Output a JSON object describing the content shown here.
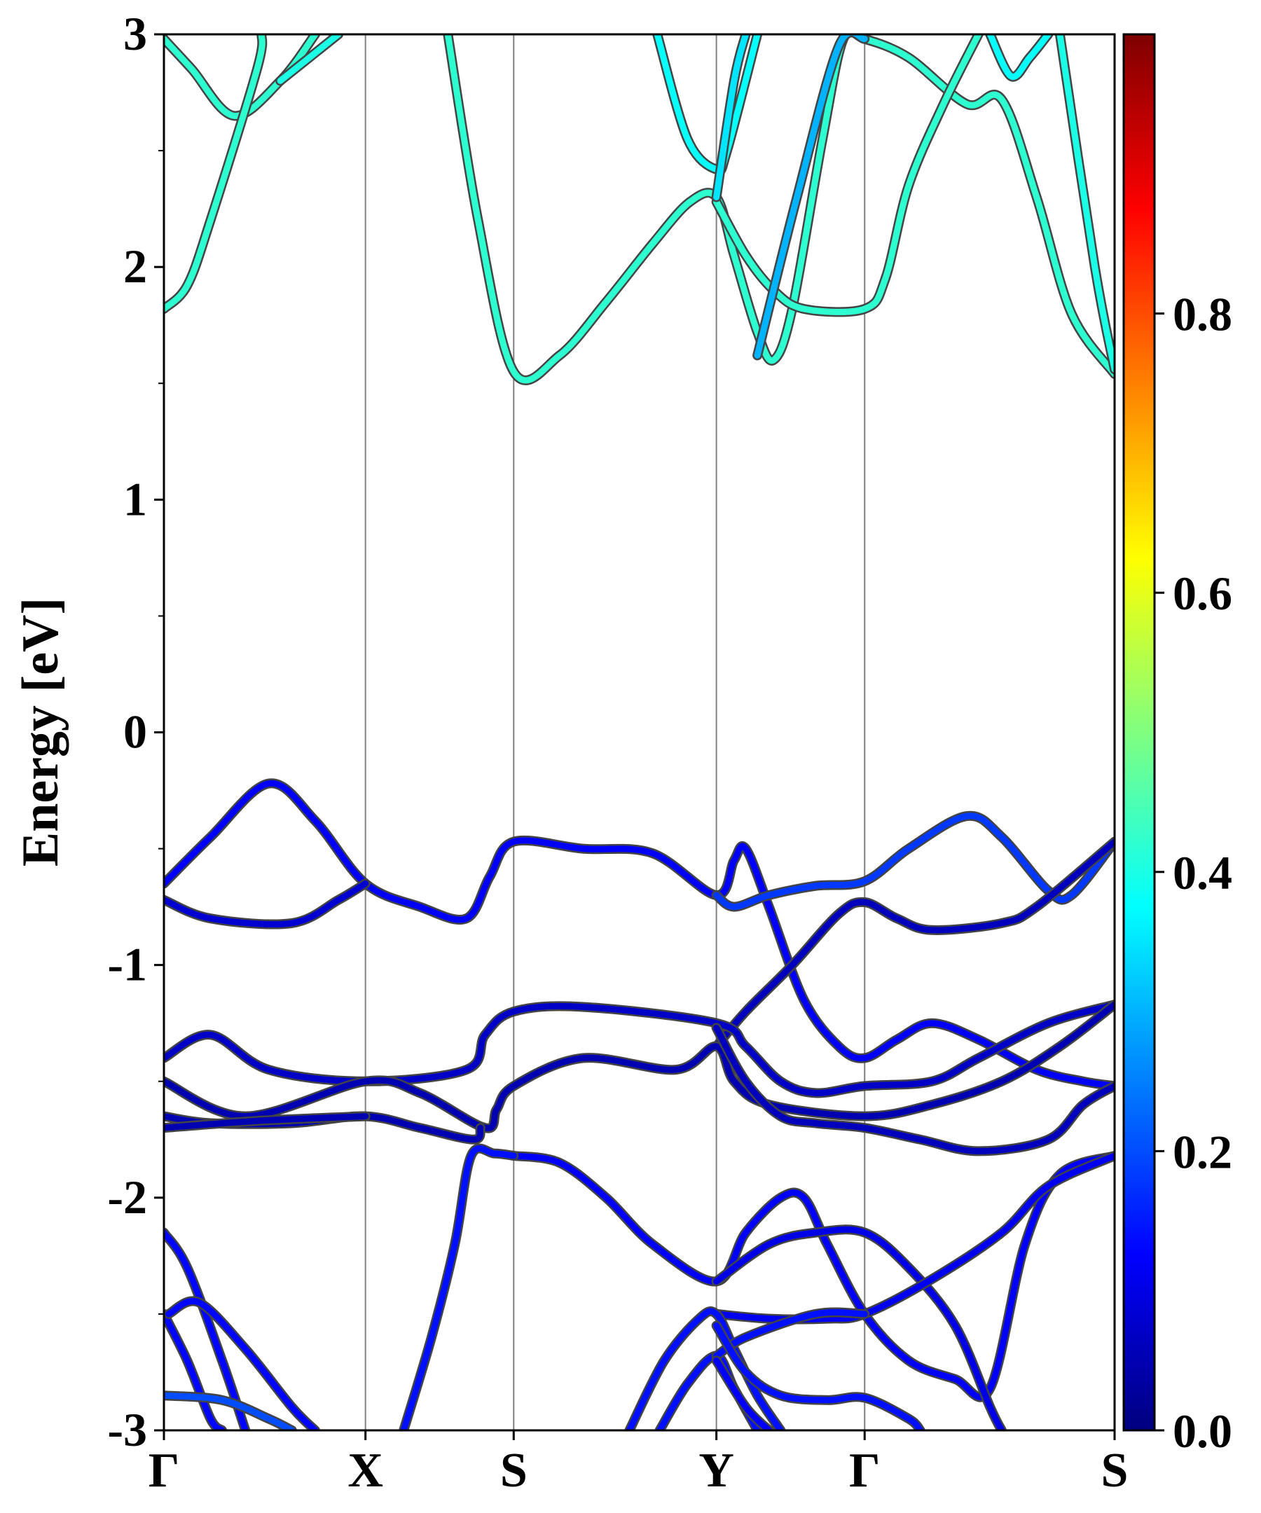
{
  "chart_data": {
    "type": "line",
    "title": "",
    "ylabel": "Energy [eV]",
    "xlabel": "",
    "ylim": [
      -3,
      3
    ],
    "yticks": [
      "-3",
      "-2",
      "-1",
      "0",
      "1",
      "2",
      "3"
    ],
    "kpath": {
      "labels": [
        "Γ",
        "X",
        "S",
        "Y",
        "Γ",
        "S"
      ],
      "positions": [
        0,
        0.866,
        1.503,
        2.374,
        3.011,
        4.085
      ]
    },
    "colorbar": {
      "colormap": "jet",
      "range": [
        0.0,
        1.0
      ],
      "ticks": [
        "0.0",
        "0.2",
        "0.4",
        "0.6",
        "0.8"
      ]
    },
    "grid": false,
    "series": [
      {
        "weight": 0.42,
        "points": [
          [
            0,
            2.98
          ],
          [
            0.12,
            2.85
          ],
          [
            0.3,
            2.65
          ],
          [
            0.5,
            2.8
          ],
          [
            0.65,
            3.0
          ]
        ]
      },
      {
        "weight": 0.42,
        "points": [
          [
            0,
            1.82
          ],
          [
            0.1,
            1.92
          ],
          [
            0.2,
            2.2
          ],
          [
            0.4,
            2.85
          ],
          [
            0.42,
            3.0
          ]
        ]
      },
      {
        "weight": 0.4,
        "points": [
          [
            0.5,
            2.8
          ],
          [
            0.75,
            3.0
          ]
        ]
      },
      {
        "weight": 0.42,
        "points": [
          [
            1.22,
            3.0
          ],
          [
            1.35,
            2.2
          ],
          [
            1.503,
            1.55
          ],
          [
            1.7,
            1.62
          ],
          [
            1.9,
            1.85
          ],
          [
            2.1,
            2.1
          ],
          [
            2.26,
            2.28
          ],
          [
            2.374,
            2.3
          ],
          [
            2.45,
            2.05
          ],
          [
            2.55,
            1.72
          ],
          [
            2.62,
            1.6
          ],
          [
            2.7,
            1.82
          ],
          [
            2.83,
            2.55
          ],
          [
            2.92,
            2.98
          ],
          [
            3.011,
            2.98
          ],
          [
            3.2,
            2.9
          ],
          [
            3.45,
            2.7
          ],
          [
            3.6,
            2.72
          ],
          [
            3.75,
            2.3
          ],
          [
            3.9,
            1.8
          ],
          [
            4.085,
            1.54
          ]
        ]
      },
      {
        "weight": 0.38,
        "points": [
          [
            2.12,
            3.0
          ],
          [
            2.25,
            2.55
          ],
          [
            2.374,
            2.42
          ],
          [
            2.42,
            2.5
          ],
          [
            2.55,
            3.0
          ]
        ]
      },
      {
        "weight": 0.42,
        "points": [
          [
            2.374,
            2.28
          ],
          [
            2.5,
            2.05
          ],
          [
            2.62,
            1.9
          ],
          [
            2.75,
            1.82
          ],
          [
            3.011,
            1.82
          ],
          [
            3.1,
            1.95
          ],
          [
            3.2,
            2.35
          ],
          [
            3.35,
            2.7
          ],
          [
            3.5,
            3.0
          ]
        ]
      },
      {
        "weight": 0.35,
        "points": [
          [
            2.374,
            2.3
          ],
          [
            2.45,
            2.8
          ],
          [
            2.5,
            3.0
          ]
        ]
      },
      {
        "weight": 0.3,
        "points": [
          [
            2.55,
            1.62
          ],
          [
            2.72,
            2.3
          ],
          [
            2.9,
            2.95
          ],
          [
            3.011,
            2.98
          ]
        ]
      },
      {
        "weight": 0.38,
        "points": [
          [
            3.55,
            3.0
          ],
          [
            3.64,
            2.82
          ],
          [
            3.72,
            2.9
          ],
          [
            3.8,
            3.0
          ]
        ]
      },
      {
        "weight": 0.4,
        "points": [
          [
            3.85,
            3.0
          ],
          [
            4.0,
            2.0
          ],
          [
            4.085,
            1.56
          ]
        ]
      },
      {
        "weight": 0.12,
        "points": [
          [
            0,
            -0.65
          ],
          [
            0.2,
            -0.45
          ],
          [
            0.45,
            -0.22
          ],
          [
            0.65,
            -0.38
          ],
          [
            0.866,
            -0.65
          ],
          [
            1.1,
            -0.75
          ],
          [
            1.3,
            -0.8
          ],
          [
            1.4,
            -0.62
          ],
          [
            1.503,
            -0.47
          ],
          [
            1.8,
            -0.5
          ],
          [
            2.1,
            -0.52
          ],
          [
            2.374,
            -0.7
          ],
          [
            2.45,
            -0.55
          ],
          [
            2.5,
            -0.5
          ],
          [
            2.6,
            -0.75
          ],
          [
            2.75,
            -1.15
          ],
          [
            2.9,
            -1.35
          ],
          [
            3.011,
            -1.4
          ],
          [
            3.15,
            -1.32
          ],
          [
            3.3,
            -1.25
          ],
          [
            3.5,
            -1.32
          ],
          [
            3.75,
            -1.45
          ],
          [
            3.95,
            -1.5
          ],
          [
            4.085,
            -1.52
          ]
        ]
      },
      {
        "weight": 0.08,
        "points": [
          [
            0,
            -0.72
          ],
          [
            0.2,
            -0.8
          ],
          [
            0.55,
            -0.82
          ],
          [
            0.75,
            -0.72
          ],
          [
            0.866,
            -0.65
          ]
        ]
      },
      {
        "weight": 0.18,
        "points": [
          [
            2.374,
            -0.7
          ],
          [
            2.45,
            -0.75
          ],
          [
            2.6,
            -0.7
          ],
          [
            2.8,
            -0.66
          ],
          [
            3.011,
            -0.64
          ],
          [
            3.2,
            -0.5
          ],
          [
            3.45,
            -0.36
          ],
          [
            3.6,
            -0.45
          ],
          [
            3.8,
            -0.68
          ],
          [
            3.9,
            -0.7
          ],
          [
            4.085,
            -0.47
          ]
        ]
      },
      {
        "weight": 0.06,
        "points": [
          [
            2.374,
            -1.35
          ],
          [
            2.5,
            -1.2
          ],
          [
            2.7,
            -1.0
          ],
          [
            2.9,
            -0.78
          ],
          [
            3.011,
            -0.73
          ],
          [
            3.15,
            -0.8
          ],
          [
            3.3,
            -0.85
          ],
          [
            3.6,
            -0.82
          ],
          [
            3.75,
            -0.75
          ],
          [
            4.085,
            -0.47
          ]
        ]
      },
      {
        "weight": 0.07,
        "points": [
          [
            0,
            -1.4
          ],
          [
            0.2,
            -1.3
          ],
          [
            0.45,
            -1.45
          ],
          [
            0.866,
            -1.5
          ],
          [
            1.3,
            -1.45
          ],
          [
            1.38,
            -1.3
          ],
          [
            1.503,
            -1.2
          ],
          [
            1.8,
            -1.18
          ],
          [
            2.374,
            -1.25
          ],
          [
            2.5,
            -1.35
          ],
          [
            2.65,
            -1.5
          ],
          [
            2.8,
            -1.55
          ],
          [
            3.011,
            -1.52
          ],
          [
            3.3,
            -1.5
          ],
          [
            3.5,
            -1.4
          ],
          [
            3.8,
            -1.25
          ],
          [
            4.085,
            -1.17
          ]
        ]
      },
      {
        "weight": 0.05,
        "points": [
          [
            0,
            -1.5
          ],
          [
            0.35,
            -1.65
          ],
          [
            0.866,
            -1.5
          ],
          [
            1.1,
            -1.55
          ],
          [
            1.38,
            -1.7
          ],
          [
            1.43,
            -1.62
          ],
          [
            1.503,
            -1.52
          ],
          [
            1.8,
            -1.4
          ],
          [
            2.2,
            -1.45
          ],
          [
            2.374,
            -1.35
          ],
          [
            2.45,
            -1.5
          ],
          [
            2.6,
            -1.6
          ],
          [
            3.011,
            -1.65
          ],
          [
            3.3,
            -1.6
          ],
          [
            3.6,
            -1.5
          ],
          [
            3.85,
            -1.35
          ],
          [
            4.085,
            -1.17
          ]
        ]
      },
      {
        "weight": 0.05,
        "points": [
          [
            0,
            -1.65
          ],
          [
            0.2,
            -1.68
          ],
          [
            0.55,
            -1.68
          ],
          [
            0.866,
            -1.65
          ],
          [
            1.1,
            -1.7
          ],
          [
            1.33,
            -1.75
          ],
          [
            1.36,
            -1.7
          ]
        ]
      },
      {
        "weight": 0.05,
        "points": [
          [
            0,
            -1.7
          ],
          [
            0.4,
            -1.67
          ],
          [
            0.866,
            -1.65
          ]
        ]
      },
      {
        "weight": 0.06,
        "points": [
          [
            2.374,
            -1.27
          ],
          [
            2.5,
            -1.5
          ],
          [
            2.65,
            -1.65
          ],
          [
            2.8,
            -1.68
          ],
          [
            3.011,
            -1.7
          ],
          [
            3.25,
            -1.75
          ],
          [
            3.5,
            -1.8
          ],
          [
            3.8,
            -1.75
          ],
          [
            3.95,
            -1.6
          ],
          [
            4.085,
            -1.52
          ]
        ]
      },
      {
        "weight": 0.12,
        "points": [
          [
            1.503,
            -1.82
          ],
          [
            1.7,
            -1.85
          ],
          [
            1.9,
            -2.0
          ],
          [
            2.1,
            -2.2
          ],
          [
            2.374,
            -2.36
          ],
          [
            2.5,
            -2.15
          ],
          [
            2.65,
            -2.0
          ],
          [
            2.75,
            -2.0
          ],
          [
            2.85,
            -2.2
          ],
          [
            3.011,
            -2.5
          ],
          [
            3.2,
            -2.7
          ],
          [
            3.4,
            -2.78
          ],
          [
            3.55,
            -2.82
          ],
          [
            3.7,
            -2.2
          ],
          [
            3.85,
            -1.9
          ],
          [
            4.085,
            -1.82
          ]
        ]
      },
      {
        "weight": 0.14,
        "points": [
          [
            1.03,
            -3.0
          ],
          [
            1.15,
            -2.6
          ],
          [
            1.25,
            -2.2
          ],
          [
            1.32,
            -1.82
          ],
          [
            1.42,
            -1.81
          ],
          [
            1.503,
            -1.82
          ]
        ]
      },
      {
        "weight": 0.1,
        "points": [
          [
            2.374,
            -2.36
          ],
          [
            2.6,
            -2.2
          ],
          [
            2.8,
            -2.15
          ],
          [
            3.011,
            -2.15
          ],
          [
            3.2,
            -2.3
          ],
          [
            3.4,
            -2.55
          ],
          [
            3.55,
            -2.9
          ],
          [
            3.6,
            -3.0
          ]
        ]
      },
      {
        "weight": 0.11,
        "points": [
          [
            2.374,
            -2.5
          ],
          [
            2.6,
            -2.52
          ],
          [
            2.85,
            -2.52
          ],
          [
            3.011,
            -2.5
          ],
          [
            3.3,
            -2.35
          ],
          [
            3.6,
            -2.15
          ],
          [
            3.8,
            -1.95
          ],
          [
            4.085,
            -1.82
          ]
        ]
      },
      {
        "weight": 0.13,
        "points": [
          [
            0,
            -2.15
          ],
          [
            0.1,
            -2.3
          ],
          [
            0.25,
            -2.7
          ],
          [
            0.35,
            -3.0
          ]
        ]
      },
      {
        "weight": 0.13,
        "points": [
          [
            0,
            -2.5
          ],
          [
            0.1,
            -2.7
          ],
          [
            0.2,
            -2.95
          ],
          [
            0.25,
            -3.0
          ]
        ]
      },
      {
        "weight": 0.13,
        "points": [
          [
            0.02,
            -2.5
          ],
          [
            0.15,
            -2.45
          ],
          [
            0.35,
            -2.65
          ],
          [
            0.55,
            -2.9
          ],
          [
            0.65,
            -3.0
          ]
        ]
      },
      {
        "weight": 0.2,
        "points": [
          [
            0,
            -2.85
          ],
          [
            0.25,
            -2.87
          ],
          [
            0.45,
            -2.95
          ],
          [
            0.55,
            -3.0
          ]
        ]
      },
      {
        "weight": 0.14,
        "points": [
          [
            2.0,
            -3.0
          ],
          [
            2.15,
            -2.7
          ],
          [
            2.3,
            -2.52
          ],
          [
            2.374,
            -2.5
          ],
          [
            2.45,
            -2.65
          ],
          [
            2.55,
            -2.85
          ],
          [
            2.65,
            -3.0
          ]
        ]
      },
      {
        "weight": 0.14,
        "points": [
          [
            2.13,
            -3.0
          ],
          [
            2.25,
            -2.8
          ],
          [
            2.374,
            -2.68
          ],
          [
            2.45,
            -2.82
          ],
          [
            2.55,
            -3.0
          ]
        ]
      },
      {
        "weight": 0.14,
        "points": [
          [
            2.374,
            -2.68
          ],
          [
            2.5,
            -2.6
          ],
          [
            2.8,
            -2.5
          ],
          [
            3.011,
            -2.5
          ]
        ]
      },
      {
        "weight": 0.14,
        "points": [
          [
            2.374,
            -2.55
          ],
          [
            2.5,
            -2.75
          ],
          [
            2.65,
            -2.85
          ],
          [
            2.85,
            -2.87
          ],
          [
            3.011,
            -2.86
          ],
          [
            3.2,
            -2.95
          ],
          [
            3.25,
            -3.0
          ]
        ]
      },
      {
        "weight": 0.12,
        "points": [
          [
            2.374,
            -2.7
          ],
          [
            2.5,
            -2.9
          ],
          [
            2.6,
            -3.0
          ]
        ]
      }
    ]
  }
}
